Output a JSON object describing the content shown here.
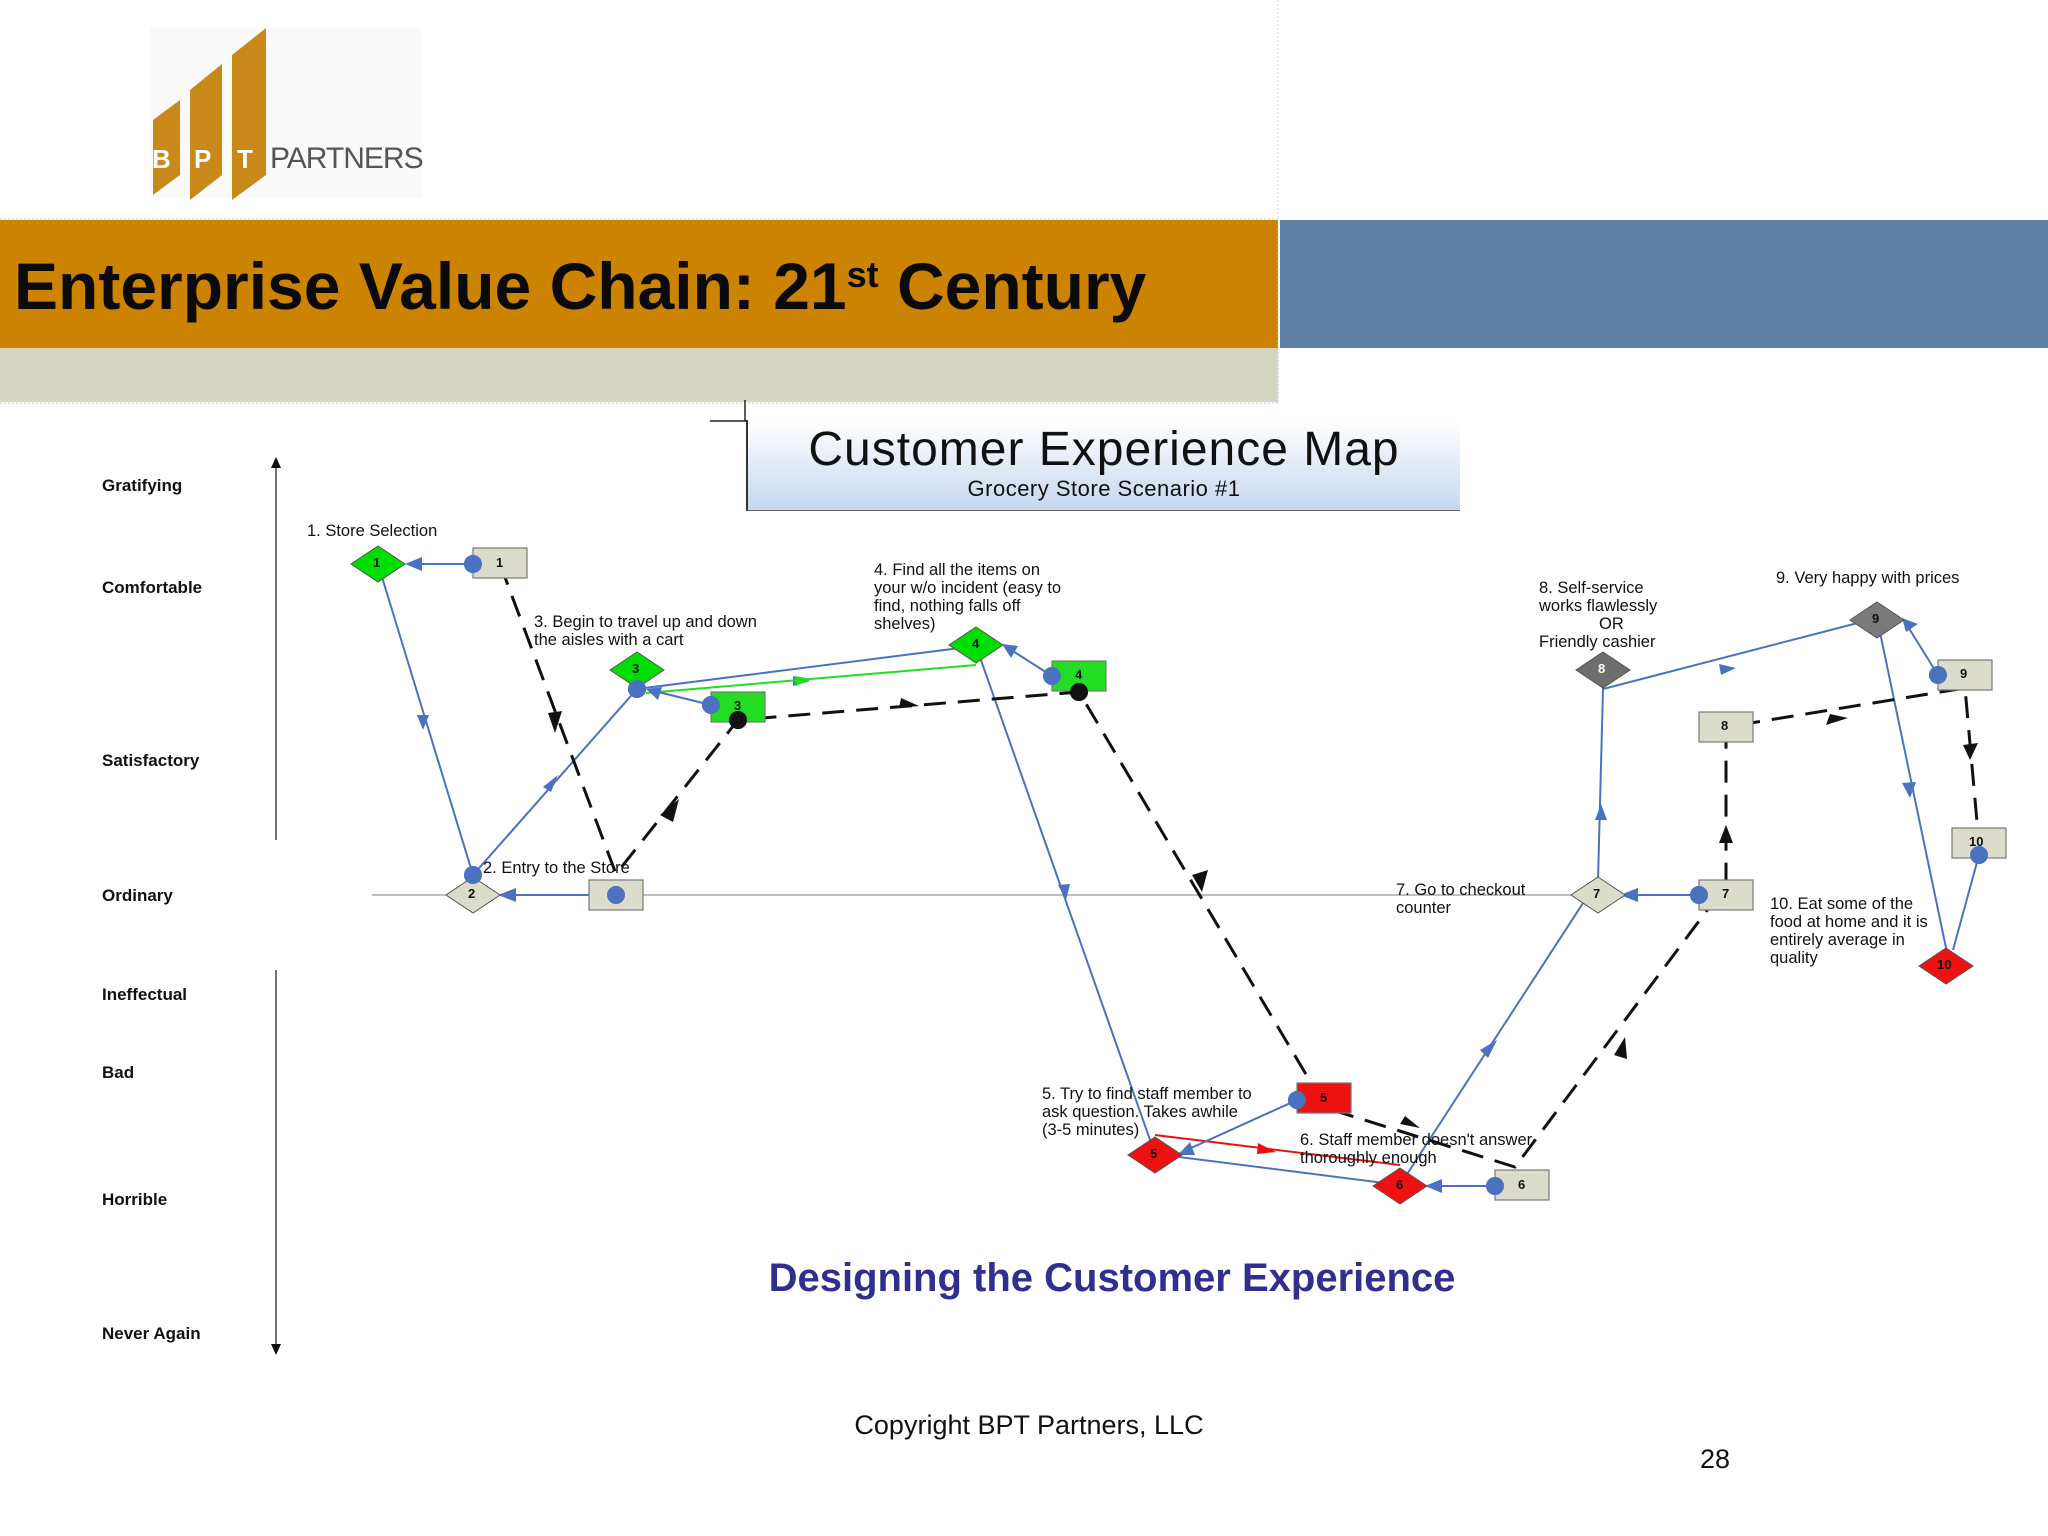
{
  "header": {
    "logo_text_b": "B",
    "logo_text_p": "P",
    "logo_text_t": "T",
    "logo_text_partners": "PARTNERS",
    "title_main": "Enterprise Value Chain: 21",
    "title_sup": "st",
    "title_end": " Century",
    "colors": {
      "title_band": "#cc8400",
      "right_band": "#5f7fa3",
      "under_band": "#d4d5c3",
      "logo_gold": "#c8891a"
    }
  },
  "map_title": {
    "main": "Customer Experience Map",
    "subtitle": "Grocery Store Scenario #1"
  },
  "levels": [
    "Gratifying",
    "Comfortable",
    "Satisfactory",
    "Ordinary",
    "Ineffectual",
    "Bad",
    "Horrible",
    "Never Again"
  ],
  "annotations": {
    "a1": [
      "1. Store Selection"
    ],
    "a2": [
      "2. Entry to the Store"
    ],
    "a3": [
      "3. Begin to travel up and down",
      "the aisles with a cart"
    ],
    "a4": [
      "4. Find all the items on",
      "your w/o incident (easy to",
      "find, nothing falls off",
      "shelves)"
    ],
    "a5": [
      "5. Try to find staff member to",
      "ask question. Takes awhile",
      "(3-5 minutes)"
    ],
    "a6": [
      "6.  Staff member doesn't answer",
      "thoroughly enough"
    ],
    "a7": [
      "7. Go to checkout",
      "counter"
    ],
    "a8": [
      "8. Self-service",
      "works flawlessly",
      "OR",
      "Friendly cashier"
    ],
    "a9": [
      "9. Very happy with prices"
    ],
    "a10": [
      "10. Eat some of the",
      "food at home and it is",
      "entirely average in",
      "quality"
    ]
  },
  "diamond_labels": [
    "1",
    "2",
    "3",
    "4",
    "5",
    "6",
    "7",
    "8",
    "9",
    "10"
  ],
  "box_labels": [
    "1",
    "3",
    "4",
    "5",
    "6",
    "7",
    "8",
    "9",
    "10"
  ],
  "status_colors": {
    "positive": "#00dd00",
    "neutral": "#dcdccc",
    "negative": "#ee1111",
    "gray": "#7a7a7a",
    "flow_line": "#4a72c0"
  },
  "footer": {
    "subtitle": "Designing the Customer Experience",
    "copyright": "Copyright BPT Partners, LLC",
    "page_number": "28"
  }
}
